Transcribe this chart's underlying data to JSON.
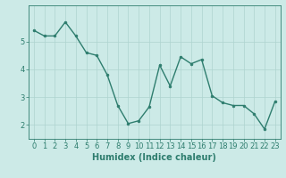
{
  "x": [
    0,
    1,
    2,
    3,
    4,
    5,
    6,
    7,
    8,
    9,
    10,
    11,
    12,
    13,
    14,
    15,
    16,
    17,
    18,
    19,
    20,
    21,
    22,
    23
  ],
  "y": [
    5.4,
    5.2,
    5.2,
    5.7,
    5.2,
    4.6,
    4.5,
    3.8,
    2.7,
    2.05,
    2.15,
    2.65,
    4.15,
    3.4,
    4.45,
    4.2,
    4.35,
    3.05,
    2.8,
    2.7,
    2.7,
    2.4,
    1.85,
    2.85
  ],
  "line_color": "#2e7d6e",
  "marker": "o",
  "markersize": 2.0,
  "linewidth": 1.0,
  "background_color": "#cceae7",
  "grid_color": "#aed4d0",
  "tick_color": "#2e7d6e",
  "label_color": "#2e7d6e",
  "xlabel": "Humidex (Indice chaleur)",
  "xlabel_fontsize": 7,
  "tick_fontsize": 6,
  "ylim": [
    1.5,
    6.3
  ],
  "yticks": [
    2,
    3,
    4,
    5
  ],
  "xticks": [
    0,
    1,
    2,
    3,
    4,
    5,
    6,
    7,
    8,
    9,
    10,
    11,
    12,
    13,
    14,
    15,
    16,
    17,
    18,
    19,
    20,
    21,
    22,
    23
  ]
}
